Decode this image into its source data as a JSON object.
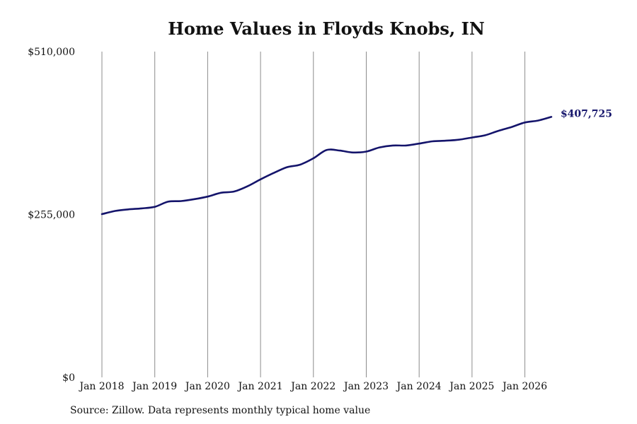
{
  "title": "Home Values in Floyds Knobs, IN",
  "source": "Source: Zillow. Data represents monthly typical home value",
  "chart_data": {
    "type": "line",
    "title": "Home Values in Floyds Knobs, IN",
    "xlabel": "",
    "ylabel": "",
    "x_ticks": [
      "Jan 2018",
      "Jan 2019",
      "Jan 2020",
      "Jan 2021",
      "Jan 2022",
      "Jan 2023",
      "Jan 2024",
      "Jan 2025",
      "Jan 2026"
    ],
    "y_ticks": [
      "$0",
      "$255,000",
      "$510,000"
    ],
    "ylim": [
      0,
      510000
    ],
    "grid": "vertical",
    "line_color": "#14146b",
    "end_label": "$407,725",
    "series": [
      {
        "x": [
          "2018-01",
          "2018-04",
          "2018-07",
          "2018-10",
          "2019-01",
          "2019-04",
          "2019-07",
          "2019-10",
          "2020-01",
          "2020-04",
          "2020-07",
          "2020-10",
          "2021-01",
          "2021-04",
          "2021-07",
          "2021-10",
          "2022-01",
          "2022-04",
          "2022-07",
          "2022-10",
          "2023-01",
          "2023-04",
          "2023-07",
          "2023-10",
          "2024-01",
          "2024-04",
          "2024-07",
          "2024-10",
          "2025-01",
          "2025-04",
          "2025-07",
          "2025-10",
          "2026-01",
          "2026-04",
          "2026-07"
        ],
        "values": [
          255500,
          260500,
          263000,
          264500,
          267000,
          275000,
          276000,
          279000,
          283000,
          289000,
          291000,
          299000,
          310000,
          320000,
          329000,
          333000,
          343000,
          356000,
          355000,
          352000,
          353500,
          360000,
          363000,
          363000,
          366000,
          369500,
          370500,
          372000,
          375500,
          379000,
          386000,
          392000,
          399000,
          402000,
          407725
        ]
      }
    ]
  }
}
